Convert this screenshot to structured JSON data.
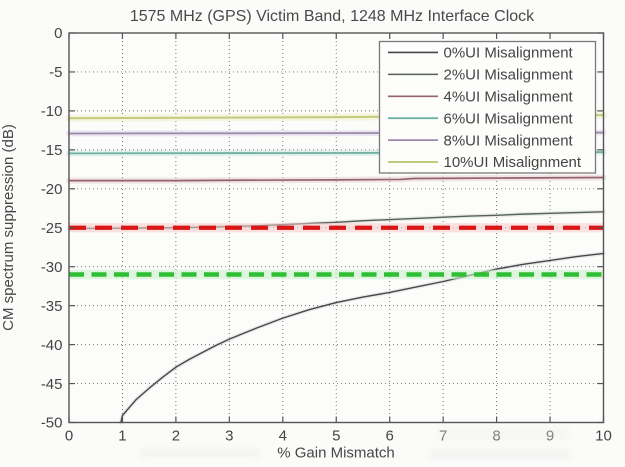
{
  "figure": {
    "background": "#fbfbfa"
  },
  "chart_data": {
    "type": "line",
    "title": "1575 MHz (GPS) Victim Band, 1248 MHz Interface Clock",
    "xlabel": "% Gain Mismatch",
    "ylabel": "CM spectrum suppression (dB)",
    "xlim": [
      0,
      10
    ],
    "ylim": [
      -50,
      0
    ],
    "xticks": [
      0,
      1,
      2,
      3,
      4,
      5,
      6,
      7,
      8,
      9,
      10
    ],
    "yticks": [
      0,
      -5,
      -10,
      -15,
      -20,
      -25,
      -30,
      -35,
      -40,
      -45,
      -50
    ],
    "grid": true,
    "grid_style": "dotted",
    "legend_position": "top-right",
    "series": [
      {
        "name": "0%UI Misalignment",
        "color": "#45474b",
        "halo": "rgba(150,150,150,0.18)",
        "halo_width": 4,
        "width": 1.4,
        "points": [
          [
            0.97,
            -50
          ],
          [
            1,
            -49.1
          ],
          [
            1.25,
            -47.1
          ],
          [
            1.5,
            -45.6
          ],
          [
            1.75,
            -44.2
          ],
          [
            2,
            -42.9
          ],
          [
            2.25,
            -41.9
          ],
          [
            2.5,
            -41.0
          ],
          [
            2.75,
            -40.1
          ],
          [
            3,
            -39.3
          ],
          [
            3.5,
            -37.9
          ],
          [
            4,
            -36.6
          ],
          [
            4.5,
            -35.5
          ],
          [
            5,
            -34.6
          ],
          [
            5.5,
            -33.9
          ],
          [
            6,
            -33.3
          ],
          [
            6.5,
            -32.6
          ],
          [
            7,
            -31.9
          ],
          [
            7.5,
            -31.1
          ],
          [
            8,
            -30.3
          ],
          [
            8.5,
            -29.7
          ],
          [
            9,
            -29.2
          ],
          [
            9.5,
            -28.7
          ],
          [
            10,
            -28.3
          ]
        ]
      },
      {
        "name": "2%UI Misalignment",
        "color": "#566159",
        "halo": "rgba(160,170,165,0.2)",
        "halo_width": 4,
        "width": 1.4,
        "points": [
          [
            0,
            -25.1
          ],
          [
            1,
            -25.05
          ],
          [
            2,
            -25.0
          ],
          [
            3,
            -24.85
          ],
          [
            3.5,
            -24.75
          ],
          [
            4,
            -24.6
          ],
          [
            4.5,
            -24.45
          ],
          [
            5,
            -24.3
          ],
          [
            5.5,
            -24.1
          ],
          [
            6,
            -23.95
          ],
          [
            6.5,
            -23.8
          ],
          [
            7,
            -23.65
          ],
          [
            7.5,
            -23.5
          ],
          [
            8,
            -23.4
          ],
          [
            8.5,
            -23.25
          ],
          [
            9,
            -23.15
          ],
          [
            9.5,
            -23.05
          ],
          [
            10,
            -22.95
          ]
        ]
      },
      {
        "name": "4%UI Misalignment",
        "color": "#97626c",
        "halo": "rgba(224,200,205,0.45)",
        "halo_width": 6,
        "width": 1.7,
        "points": [
          [
            0,
            -18.95
          ],
          [
            2,
            -18.95
          ],
          [
            3,
            -18.9
          ],
          [
            4,
            -18.88
          ],
          [
            5,
            -18.85
          ],
          [
            6.2,
            -18.8
          ],
          [
            6.45,
            -18.68
          ],
          [
            8,
            -18.62
          ],
          [
            10,
            -18.55
          ]
        ]
      },
      {
        "name": "6%UI Misalignment",
        "color": "#6fb0a1",
        "halo": "rgba(198,228,219,0.5)",
        "halo_width": 6,
        "width": 1.8,
        "points": [
          [
            0,
            -15.45
          ],
          [
            5,
            -15.4
          ],
          [
            10,
            -15.3
          ]
        ]
      },
      {
        "name": "8%UI Misalignment",
        "color": "#9a89aa",
        "halo": "rgba(216,206,226,0.45)",
        "halo_width": 6,
        "width": 1.8,
        "points": [
          [
            0,
            -12.9
          ],
          [
            5,
            -12.85
          ],
          [
            10,
            -12.78
          ]
        ]
      },
      {
        "name": "10%UI Misalignment",
        "color": "#c3ca7c",
        "halo": "rgba(236,238,198,0.55)",
        "halo_width": 7,
        "width": 2,
        "points": [
          [
            0,
            -10.95
          ],
          [
            5,
            -10.8
          ],
          [
            10,
            -10.55
          ]
        ]
      }
    ],
    "reference_lines": [
      {
        "id": "red-dashed-limit",
        "color": "#da1616",
        "halo": "rgba(247,203,203,0.55)",
        "y": -25,
        "dash": [
          17,
          9
        ],
        "width": 4.2
      },
      {
        "id": "green-dashed-limit",
        "color": "#2fbe34",
        "halo": "rgba(204,240,204,0.6)",
        "y": -31,
        "dash": [
          15,
          7.5
        ],
        "width": 4.4
      }
    ],
    "legend_entries": [
      "0%UI Misalignment",
      "2%UI Misalignment",
      "4%UI Misalignment",
      "6%UI Misalignment",
      "8%UI Misalignment",
      "10%UI Misalignment"
    ]
  }
}
